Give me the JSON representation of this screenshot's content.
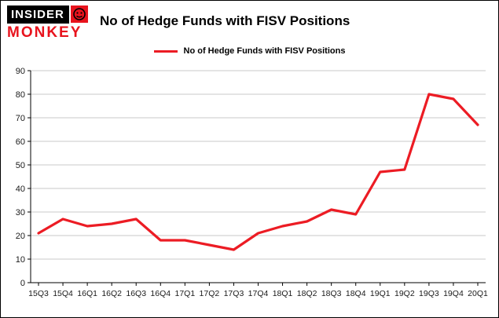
{
  "header": {
    "logo_top": "INSIDER",
    "logo_bottom": "MONKEY",
    "title": "No of Hedge Funds with FISV Positions"
  },
  "colors": {
    "line": "#ec1c24",
    "grid": "#c8c8c8",
    "axis": "#000000",
    "logo_red": "#e8131d",
    "logo_black": "#000000"
  },
  "chart_data": {
    "type": "line",
    "title": "No of Hedge Funds with FISV Positions",
    "categories": [
      "15Q3",
      "15Q4",
      "16Q1",
      "16Q2",
      "16Q3",
      "16Q4",
      "17Q1",
      "17Q2",
      "17Q3",
      "17Q4",
      "18Q1",
      "18Q2",
      "18Q3",
      "18Q4",
      "19Q1",
      "19Q2",
      "19Q3",
      "19Q4",
      "20Q1"
    ],
    "series": [
      {
        "name": "No of Hedge Funds with FISV Positions",
        "values": [
          21,
          27,
          24,
          25,
          27,
          18,
          18,
          16,
          14,
          21,
          24,
          26,
          31,
          29,
          47,
          48,
          80,
          78,
          67
        ]
      }
    ],
    "xlabel": "",
    "ylabel": "",
    "ylim": [
      0,
      90
    ],
    "yticks": [
      0,
      10,
      20,
      30,
      40,
      50,
      60,
      70,
      80,
      90
    ],
    "grid": true,
    "legend_position": "top"
  }
}
